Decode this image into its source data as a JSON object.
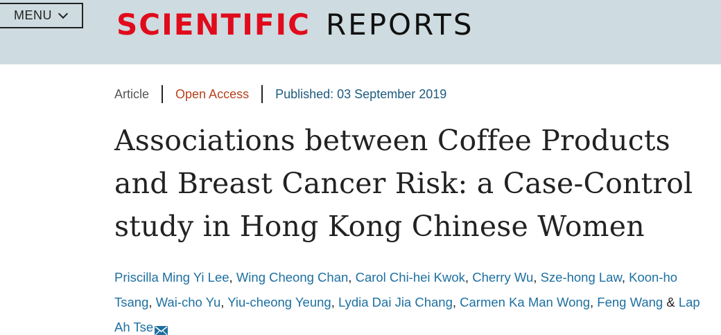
{
  "header": {
    "menu_label": "MENU",
    "logo_part1": "SCIENTIFIC",
    "logo_part2": "REPORTS",
    "brand_color": "#e00b1c",
    "background_color": "#cedbe0"
  },
  "article": {
    "type": "Article",
    "access": "Open Access",
    "published": "Published: 03 September 2019",
    "title_lines": [
      "Associations between Coffee Products",
      "and Breast Cancer Risk: a Case-Control",
      "study in Hong Kong Chinese Women"
    ],
    "authors": [
      "Priscilla Ming Yi Lee",
      "Wing Cheong Chan",
      "Carol Chi-hei Kwok",
      "Cherry Wu",
      "Sze-hong Law",
      "Koon-ho Tsang",
      "Wai-cho Yu",
      "Yiu-cheong Yeung",
      "Lydia Dai Jia Chang",
      "Carmen Ka Man Wong",
      "Feng Wang",
      "Lap Ah Tse"
    ],
    "author_separator": ", ",
    "author_conjunction": " & ",
    "corresponding_icon": "mail-icon"
  }
}
